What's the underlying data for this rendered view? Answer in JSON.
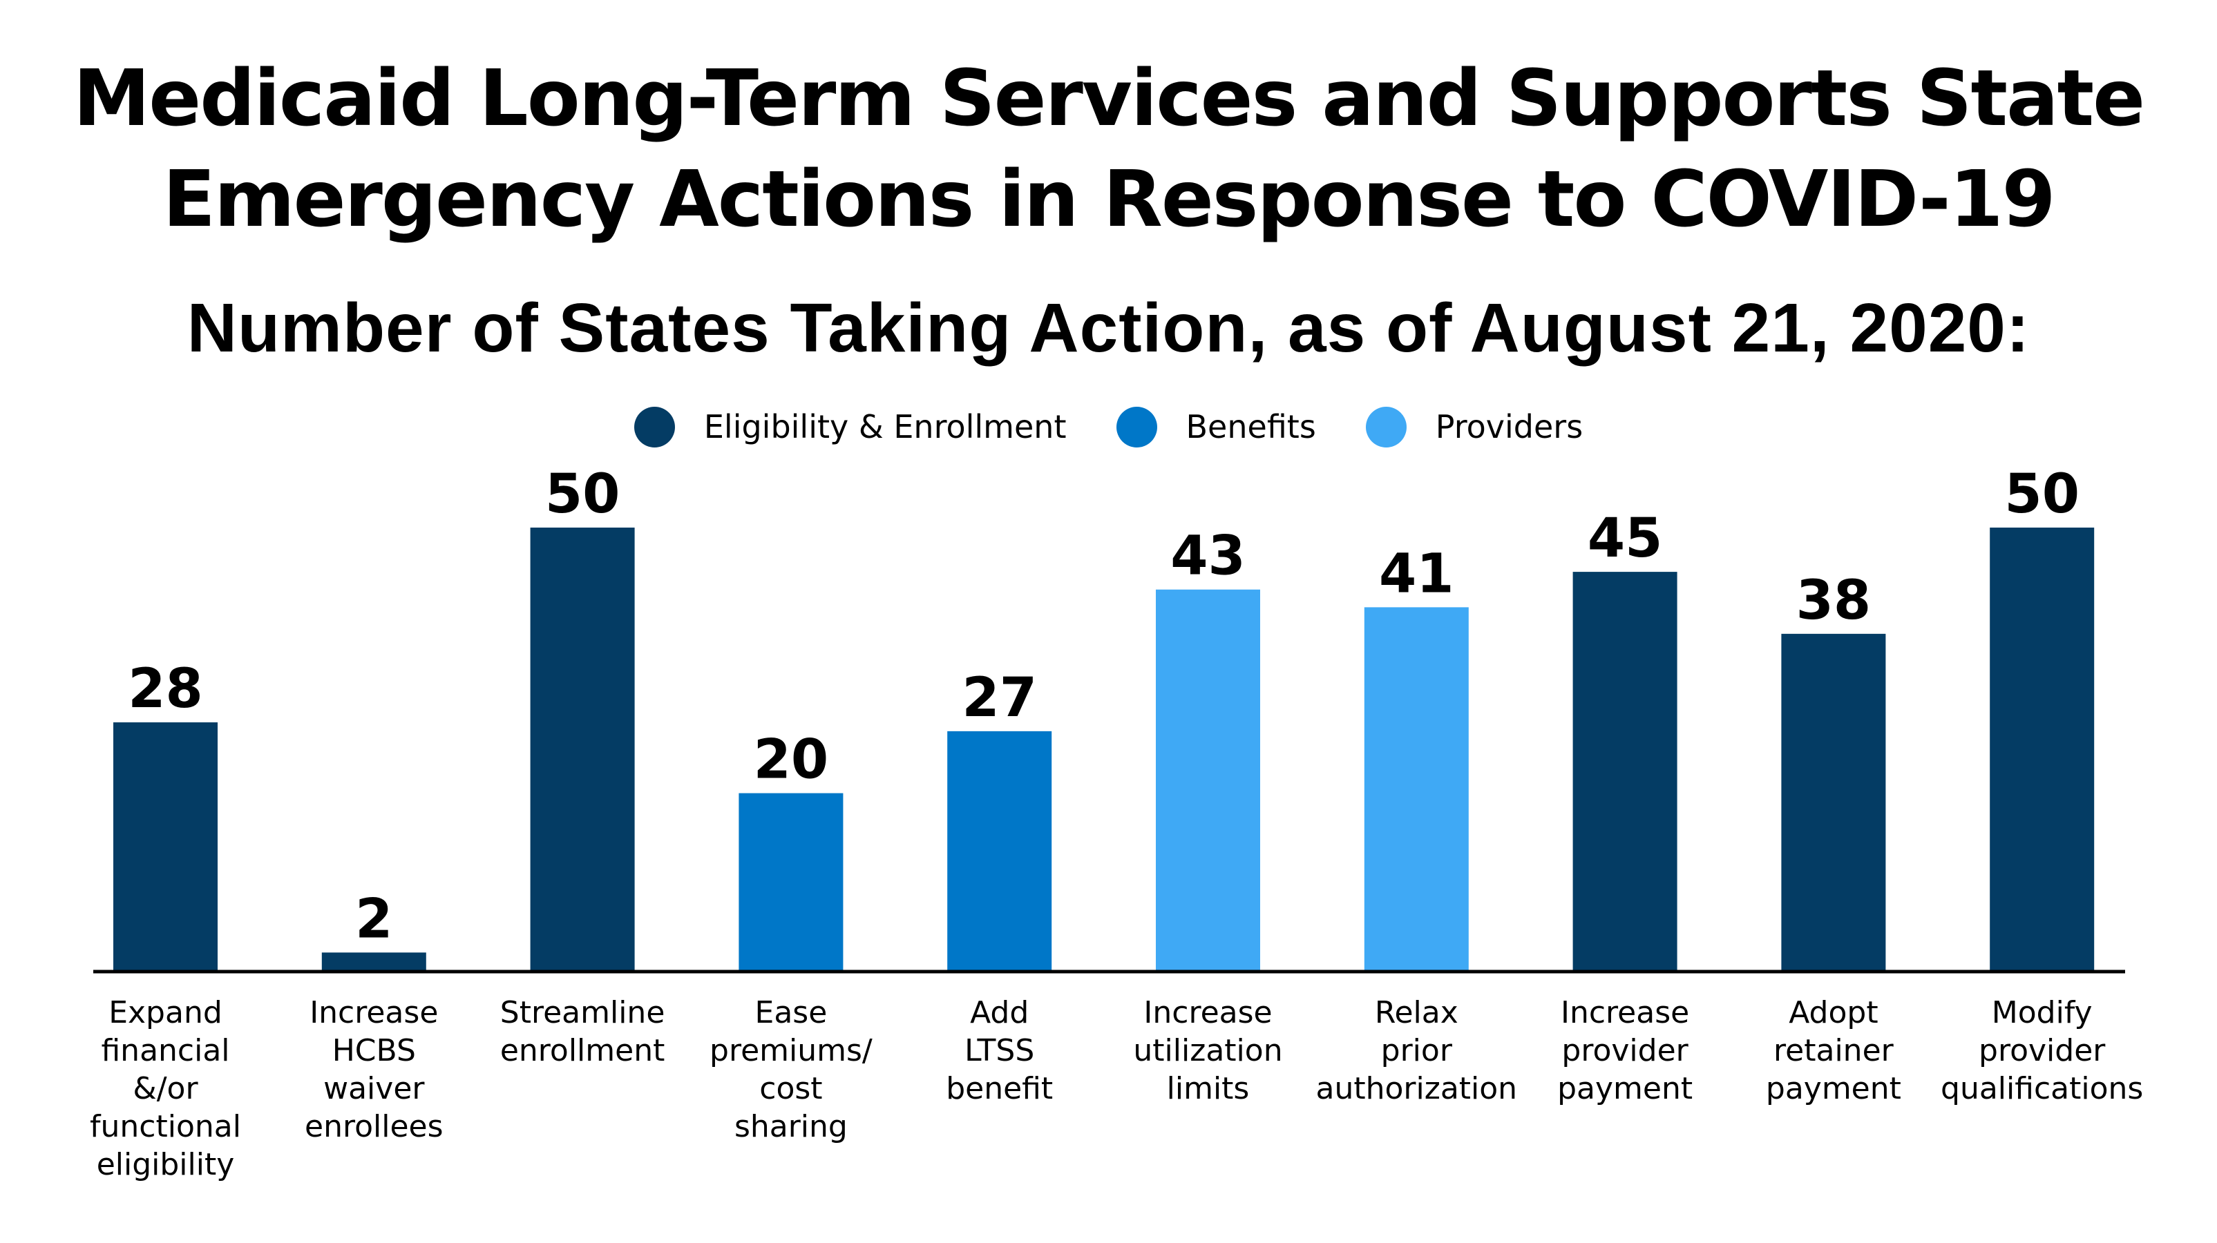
{
  "title": {
    "line1": "Medicaid Long-Term Services and Supports State",
    "line2": "Emergency Actions in Response to COVID-19"
  },
  "subtitle": "Number of States Taking Action, as of August 21, 2020:",
  "legend": [
    {
      "label": "Eligibility & Enrollment",
      "color": "#043C64",
      "icon": "circle-dot-icon"
    },
    {
      "label": "Benefits",
      "color": "#0077C8",
      "icon": "circle-dot-icon"
    },
    {
      "label": "Providers",
      "color": "#3FA9F5",
      "icon": "circle-dot-icon"
    }
  ],
  "chart_data": {
    "type": "bar",
    "title": "Medicaid Long-Term Services and Supports State Emergency Actions in Response to COVID-19",
    "subtitle": "Number of States Taking Action, as of August 21, 2020:",
    "xlabel": "",
    "ylabel": "",
    "ylim": [
      0,
      50
    ],
    "grid": false,
    "legend_position": "top-center",
    "categories": [
      [
        "Expand",
        "financial",
        "&/or",
        "functional",
        "eligibility"
      ],
      [
        "Increase",
        "HCBS",
        "waiver",
        "enrollees"
      ],
      [
        "Streamline",
        "enrollment"
      ],
      [
        "Ease",
        "premiums/",
        "cost",
        "sharing"
      ],
      [
        "Add",
        "LTSS",
        "benefit"
      ],
      [
        "Increase",
        "utilization",
        "limits"
      ],
      [
        "Relax",
        "prior",
        "authorization"
      ],
      [
        "Increase",
        "provider",
        "payment"
      ],
      [
        "Adopt",
        "retainer",
        "payment"
      ],
      [
        "Modify",
        "provider",
        "qualifications"
      ]
    ],
    "values": [
      28,
      2,
      50,
      20,
      27,
      43,
      41,
      45,
      38,
      50
    ],
    "groups": [
      "Eligibility & Enrollment",
      "Eligibility & Enrollment",
      "Eligibility & Enrollment",
      "Benefits",
      "Benefits",
      "Providers",
      "Providers",
      "Eligibility & Enrollment",
      "Eligibility & Enrollment",
      "Eligibility & Enrollment"
    ],
    "series_colors": {
      "Eligibility & Enrollment": "#043C64",
      "Benefits": "#0077C8",
      "Providers": "#3FA9F5"
    },
    "data_labels": [
      "28",
      "2",
      "50",
      "20",
      "27",
      "43",
      "41",
      "45",
      "38",
      "50"
    ]
  }
}
